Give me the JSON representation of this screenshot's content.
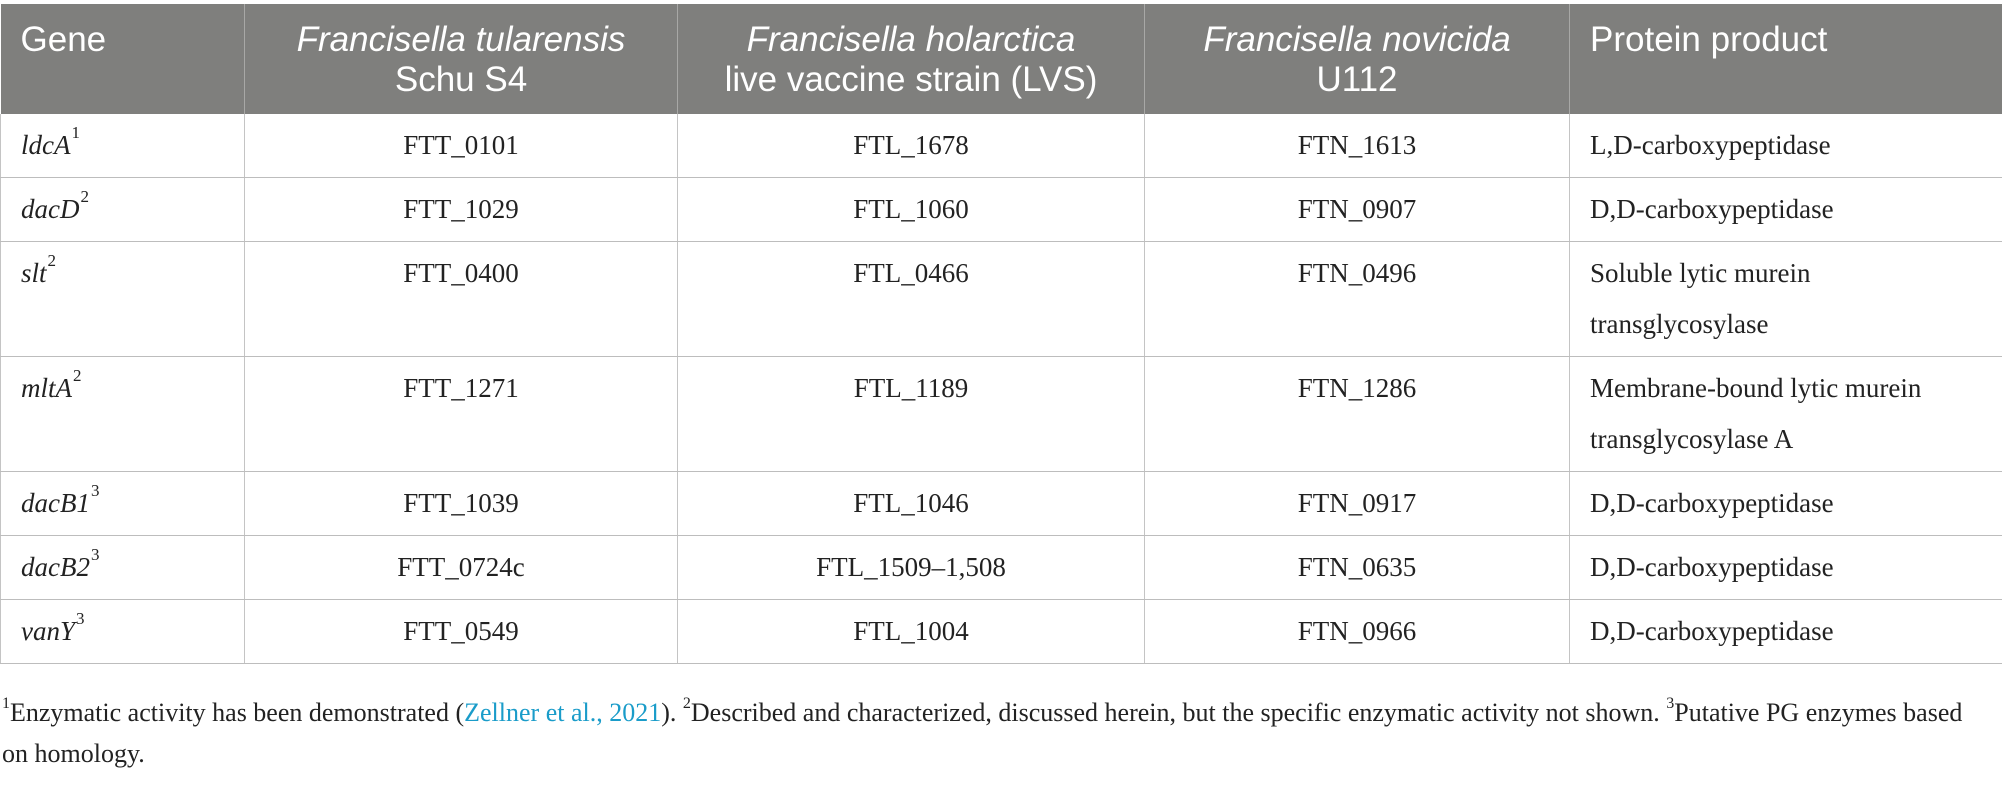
{
  "table": {
    "headers": [
      {
        "name": "Gene",
        "strain": ""
      },
      {
        "name": "Francisella tularensis",
        "strain": "Schu S4"
      },
      {
        "name": "Francisella holarctica",
        "strain": "live vaccine strain (LVS)"
      },
      {
        "name": "Francisella novicida",
        "strain": "U112"
      },
      {
        "name": "Protein product",
        "strain": ""
      }
    ],
    "rows": [
      {
        "gene": "ldcA",
        "sup": "1",
        "schu": "FTT_0101",
        "lvs": "FTL_1678",
        "u112": "FTN_1613",
        "product": "L,D-carboxypeptidase",
        "double": false
      },
      {
        "gene": "dacD",
        "sup": "2",
        "schu": "FTT_1029",
        "lvs": "FTL_1060",
        "u112": "FTN_0907",
        "product": "D,D-carboxypeptidase",
        "double": false
      },
      {
        "gene": "slt",
        "sup": "2",
        "schu": "FTT_0400",
        "lvs": "FTL_0466",
        "u112": "FTN_0496",
        "product": "Soluble lytic murein transglycosylase",
        "double": true
      },
      {
        "gene": "mltA",
        "sup": "2",
        "schu": "FTT_1271",
        "lvs": "FTL_1189",
        "u112": "FTN_1286",
        "product": "Membrane-bound lytic murein transglycosylase A",
        "double": true
      },
      {
        "gene": "dacB1",
        "sup": "3",
        "schu": "FTT_1039",
        "lvs": "FTL_1046",
        "u112": "FTN_0917",
        "product": "D,D-carboxypeptidase",
        "double": false
      },
      {
        "gene": "dacB2",
        "sup": "3",
        "schu": "FTT_0724c",
        "lvs": "FTL_1509–1,508",
        "u112": "FTN_0635",
        "product": "D,D-carboxypeptidase",
        "double": false
      },
      {
        "gene": "vanY",
        "sup": "3",
        "schu": "FTT_0549",
        "lvs": "FTL_1004",
        "u112": "FTN_0966",
        "product": "D,D-carboxypeptidase",
        "double": false
      }
    ]
  },
  "footnotes": {
    "fn1_marker": "1",
    "fn1_text_before": "Enzymatic activity has been demonstrated (",
    "fn1_link": "Zellner et al., 2021",
    "fn1_text_after": "). ",
    "fn2_marker": "2",
    "fn2_text": "Described and characterized, discussed herein, but the specific enzymatic activity not shown. ",
    "fn3_marker": "3",
    "fn3_text": "Putative PG enzymes based on homology."
  },
  "colors": {
    "header_bg": "#7f7f7d",
    "header_text": "#ffffff",
    "link": "#1a9cc9",
    "grid": "#bdbdbd"
  }
}
